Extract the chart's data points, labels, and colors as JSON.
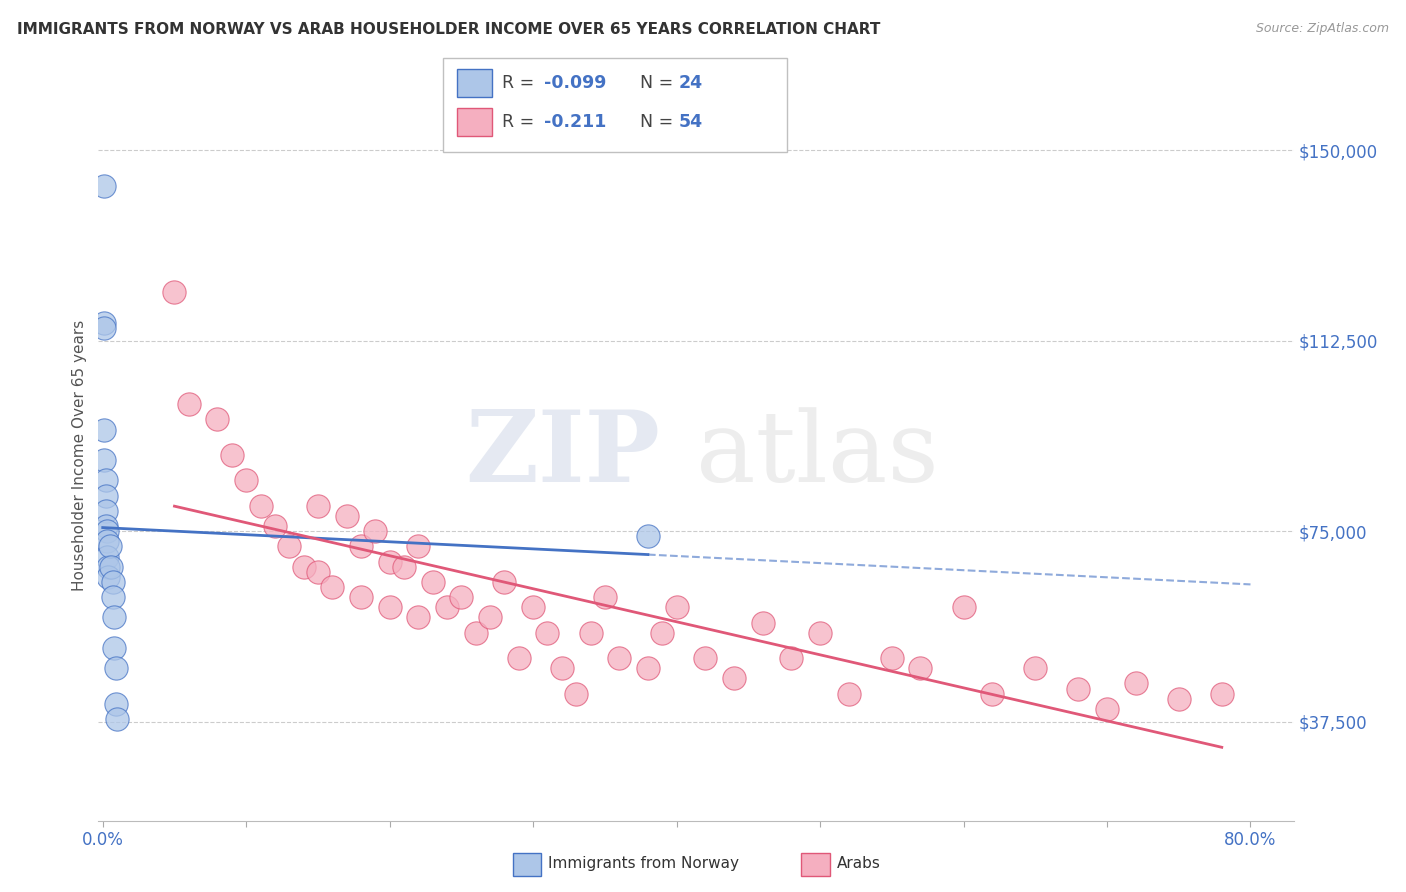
{
  "title": "IMMIGRANTS FROM NORWAY VS ARAB HOUSEHOLDER INCOME OVER 65 YEARS CORRELATION CHART",
  "source": "Source: ZipAtlas.com",
  "ylabel": "Householder Income Over 65 years",
  "ytick_labels": [
    "$37,500",
    "$75,000",
    "$112,500",
    "$150,000"
  ],
  "ytick_values": [
    37500,
    75000,
    112500,
    150000
  ],
  "ymin": 18000,
  "ymax": 162000,
  "xmin": -0.003,
  "xmax": 0.83,
  "norway_color": "#adc6e8",
  "arab_color": "#f5afc0",
  "norway_line_color": "#4472c4",
  "arab_line_color": "#e05878",
  "watermark_zip": "ZIP",
  "watermark_atlas": "atlas",
  "background_color": "#ffffff",
  "grid_color": "#cccccc",
  "title_color": "#333333",
  "axis_color": "#4472c4",
  "norway_x": [
    0.001,
    0.001,
    0.001,
    0.001,
    0.001,
    0.002,
    0.002,
    0.002,
    0.002,
    0.003,
    0.003,
    0.003,
    0.004,
    0.004,
    0.005,
    0.006,
    0.007,
    0.007,
    0.008,
    0.008,
    0.009,
    0.009,
    0.01,
    0.38
  ],
  "norway_y": [
    143000,
    116000,
    115000,
    95000,
    89000,
    85000,
    82000,
    79000,
    76000,
    75000,
    73000,
    70000,
    68000,
    66000,
    72000,
    68000,
    65000,
    62000,
    58000,
    52000,
    48000,
    41000,
    38000,
    74000
  ],
  "arab_x": [
    0.05,
    0.06,
    0.08,
    0.09,
    0.1,
    0.11,
    0.12,
    0.13,
    0.14,
    0.15,
    0.15,
    0.16,
    0.17,
    0.18,
    0.18,
    0.19,
    0.2,
    0.2,
    0.21,
    0.22,
    0.22,
    0.23,
    0.24,
    0.25,
    0.26,
    0.27,
    0.28,
    0.29,
    0.3,
    0.31,
    0.32,
    0.33,
    0.34,
    0.35,
    0.36,
    0.38,
    0.39,
    0.4,
    0.42,
    0.44,
    0.46,
    0.48,
    0.5,
    0.52,
    0.55,
    0.57,
    0.6,
    0.62,
    0.65,
    0.68,
    0.7,
    0.72,
    0.75,
    0.78
  ],
  "arab_y": [
    122000,
    100000,
    97000,
    90000,
    85000,
    80000,
    76000,
    72000,
    68000,
    67000,
    80000,
    64000,
    78000,
    72000,
    62000,
    75000,
    69000,
    60000,
    68000,
    72000,
    58000,
    65000,
    60000,
    62000,
    55000,
    58000,
    65000,
    50000,
    60000,
    55000,
    48000,
    43000,
    55000,
    62000,
    50000,
    48000,
    55000,
    60000,
    50000,
    46000,
    57000,
    50000,
    55000,
    43000,
    50000,
    48000,
    60000,
    43000,
    48000,
    44000,
    40000,
    45000,
    42000,
    43000
  ]
}
